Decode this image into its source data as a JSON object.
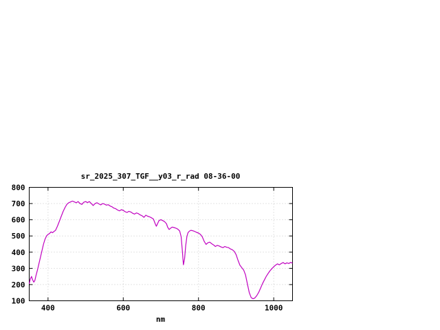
{
  "page": {
    "background": "#ffffff"
  },
  "chart_data": {
    "type": "line",
    "title": "sr_2025_307_TGF__y03_r_rad 08-36-00",
    "xlabel": "nm",
    "ylabel": "",
    "xlim": [
      350,
      1050
    ],
    "ylim": [
      100,
      800
    ],
    "x_ticks": [
      400,
      600,
      800,
      1000
    ],
    "y_ticks": [
      100,
      200,
      300,
      400,
      500,
      600,
      700,
      800
    ],
    "grid": true,
    "legend_position": "none",
    "line_color": "#c000c0",
    "axis_color": "#000000",
    "grid_color": "#c8c8c8",
    "series": [
      {
        "name": "sr_2025_307_TGF__y03_r_rad",
        "points": [
          [
            350,
            205
          ],
          [
            353,
            235
          ],
          [
            356,
            250
          ],
          [
            359,
            230
          ],
          [
            362,
            215
          ],
          [
            365,
            225
          ],
          [
            368,
            255
          ],
          [
            372,
            290
          ],
          [
            376,
            330
          ],
          [
            380,
            370
          ],
          [
            384,
            410
          ],
          [
            388,
            450
          ],
          [
            392,
            480
          ],
          [
            396,
            500
          ],
          [
            400,
            510
          ],
          [
            404,
            515
          ],
          [
            408,
            525
          ],
          [
            412,
            520
          ],
          [
            416,
            528
          ],
          [
            420,
            535
          ],
          [
            425,
            560
          ],
          [
            430,
            590
          ],
          [
            435,
            620
          ],
          [
            440,
            650
          ],
          [
            445,
            675
          ],
          [
            450,
            695
          ],
          [
            455,
            705
          ],
          [
            460,
            710
          ],
          [
            465,
            715
          ],
          [
            470,
            710
          ],
          [
            475,
            705
          ],
          [
            480,
            712
          ],
          [
            485,
            700
          ],
          [
            490,
            695
          ],
          [
            495,
            708
          ],
          [
            500,
            712
          ],
          [
            505,
            706
          ],
          [
            510,
            712
          ],
          [
            515,
            700
          ],
          [
            520,
            688
          ],
          [
            525,
            700
          ],
          [
            530,
            705
          ],
          [
            535,
            698
          ],
          [
            540,
            692
          ],
          [
            545,
            700
          ],
          [
            550,
            697
          ],
          [
            555,
            690
          ],
          [
            560,
            693
          ],
          [
            565,
            685
          ],
          [
            570,
            680
          ],
          [
            575,
            672
          ],
          [
            580,
            668
          ],
          [
            585,
            660
          ],
          [
            590,
            655
          ],
          [
            595,
            662
          ],
          [
            600,
            658
          ],
          [
            605,
            650
          ],
          [
            610,
            645
          ],
          [
            615,
            652
          ],
          [
            620,
            648
          ],
          [
            625,
            640
          ],
          [
            630,
            635
          ],
          [
            635,
            642
          ],
          [
            640,
            638
          ],
          [
            645,
            630
          ],
          [
            650,
            625
          ],
          [
            655,
            615
          ],
          [
            660,
            628
          ],
          [
            665,
            622
          ],
          [
            670,
            618
          ],
          [
            675,
            612
          ],
          [
            680,
            605
          ],
          [
            685,
            575
          ],
          [
            688,
            560
          ],
          [
            691,
            575
          ],
          [
            695,
            595
          ],
          [
            700,
            600
          ],
          [
            705,
            595
          ],
          [
            710,
            588
          ],
          [
            715,
            575
          ],
          [
            718,
            555
          ],
          [
            722,
            540
          ],
          [
            726,
            548
          ],
          [
            730,
            555
          ],
          [
            735,
            552
          ],
          [
            740,
            548
          ],
          [
            745,
            542
          ],
          [
            750,
            530
          ],
          [
            754,
            495
          ],
          [
            757,
            410
          ],
          [
            760,
            322
          ],
          [
            763,
            360
          ],
          [
            766,
            440
          ],
          [
            769,
            495
          ],
          [
            772,
            520
          ],
          [
            776,
            530
          ],
          [
            780,
            535
          ],
          [
            785,
            532
          ],
          [
            790,
            528
          ],
          [
            795,
            522
          ],
          [
            800,
            518
          ],
          [
            805,
            510
          ],
          [
            810,
            495
          ],
          [
            815,
            468
          ],
          [
            820,
            448
          ],
          [
            825,
            458
          ],
          [
            830,
            462
          ],
          [
            835,
            452
          ],
          [
            840,
            445
          ],
          [
            845,
            435
          ],
          [
            850,
            442
          ],
          [
            855,
            438
          ],
          [
            860,
            432
          ],
          [
            865,
            428
          ],
          [
            870,
            435
          ],
          [
            875,
            430
          ],
          [
            880,
            428
          ],
          [
            885,
            420
          ],
          [
            890,
            415
          ],
          [
            895,
            405
          ],
          [
            900,
            385
          ],
          [
            905,
            350
          ],
          [
            910,
            320
          ],
          [
            915,
            305
          ],
          [
            920,
            290
          ],
          [
            925,
            260
          ],
          [
            930,
            205
          ],
          [
            935,
            150
          ],
          [
            940,
            120
          ],
          [
            945,
            112
          ],
          [
            950,
            118
          ],
          [
            955,
            132
          ],
          [
            960,
            152
          ],
          [
            965,
            178
          ],
          [
            970,
            205
          ],
          [
            975,
            228
          ],
          [
            980,
            250
          ],
          [
            985,
            268
          ],
          [
            990,
            285
          ],
          [
            995,
            298
          ],
          [
            1000,
            310
          ],
          [
            1005,
            320
          ],
          [
            1010,
            328
          ],
          [
            1015,
            322
          ],
          [
            1020,
            330
          ],
          [
            1025,
            336
          ],
          [
            1030,
            328
          ],
          [
            1035,
            334
          ],
          [
            1040,
            330
          ],
          [
            1045,
            337
          ],
          [
            1050,
            332
          ]
        ]
      }
    ]
  }
}
